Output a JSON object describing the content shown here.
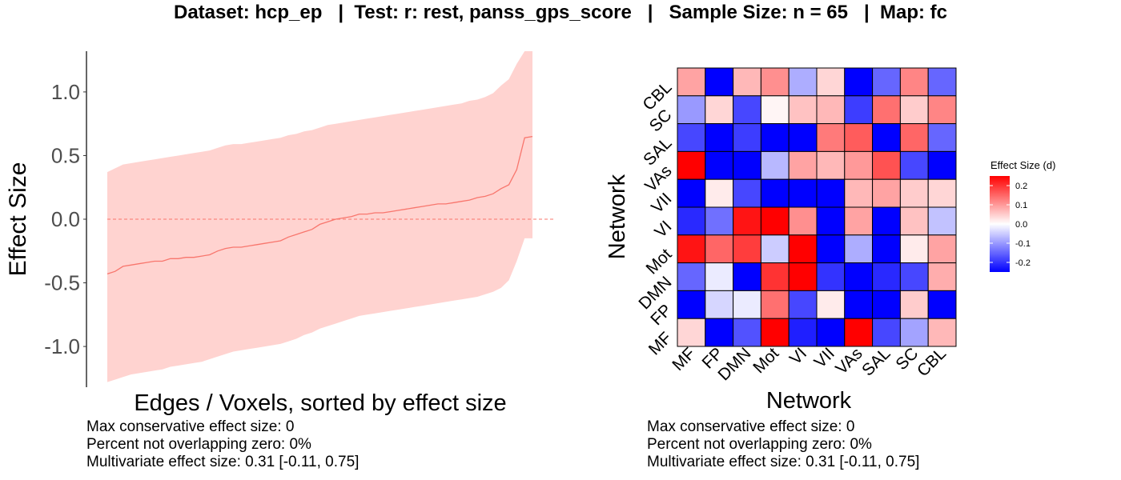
{
  "title": "Dataset: hcp_ep   |  Test: r: rest, panss_gps_score   |   Sample Size: n = 65   |  Map: fc",
  "chart_data": [
    {
      "type": "area",
      "xlabel": "Edges / Voxels, sorted by effect size",
      "ylabel": "Effect Size",
      "ylim": [
        -1.32,
        1.32
      ],
      "yticks": [
        1.0,
        0.5,
        0.0,
        -0.5,
        -1.0
      ],
      "ytick_labels": [
        "1.0",
        "0.5",
        "0.0",
        "-0.5",
        "-1.0"
      ],
      "zero_line": 0,
      "series_color": "#f8766d",
      "band_color": "#ffd3d0",
      "x": [
        1,
        2,
        3,
        4,
        5,
        6,
        7,
        8,
        9,
        10,
        11,
        12,
        13,
        14,
        15,
        16,
        17,
        18,
        19,
        20,
        21,
        22,
        23,
        24,
        25,
        26,
        27,
        28,
        29,
        30,
        31,
        32,
        33,
        34,
        35,
        36,
        37,
        38,
        39,
        40,
        41,
        42,
        43,
        44,
        45,
        46,
        47,
        48,
        49,
        50,
        51,
        52,
        53,
        54,
        55
      ],
      "y": [
        -0.43,
        -0.41,
        -0.37,
        -0.36,
        -0.35,
        -0.34,
        -0.33,
        -0.33,
        -0.31,
        -0.31,
        -0.3,
        -0.3,
        -0.29,
        -0.28,
        -0.25,
        -0.23,
        -0.22,
        -0.22,
        -0.21,
        -0.2,
        -0.19,
        -0.18,
        -0.17,
        -0.14,
        -0.12,
        -0.1,
        -0.08,
        -0.04,
        -0.02,
        0.0,
        0.01,
        0.02,
        0.04,
        0.04,
        0.05,
        0.05,
        0.06,
        0.07,
        0.08,
        0.09,
        0.1,
        0.11,
        0.12,
        0.12,
        0.13,
        0.14,
        0.15,
        0.17,
        0.18,
        0.2,
        0.24,
        0.27,
        0.39,
        0.64,
        0.65
      ],
      "ci_upper": [
        0.37,
        0.4,
        0.43,
        0.44,
        0.45,
        0.46,
        0.47,
        0.48,
        0.49,
        0.5,
        0.51,
        0.52,
        0.53,
        0.54,
        0.56,
        0.58,
        0.59,
        0.59,
        0.6,
        0.61,
        0.62,
        0.63,
        0.64,
        0.66,
        0.67,
        0.69,
        0.7,
        0.72,
        0.74,
        0.75,
        0.76,
        0.77,
        0.78,
        0.79,
        0.8,
        0.81,
        0.82,
        0.83,
        0.84,
        0.85,
        0.86,
        0.87,
        0.88,
        0.89,
        0.9,
        0.91,
        0.93,
        0.94,
        0.96,
        0.99,
        1.05,
        1.1,
        1.22,
        1.32,
        1.32
      ],
      "ci_lower": [
        -1.28,
        -1.26,
        -1.24,
        -1.22,
        -1.21,
        -1.2,
        -1.19,
        -1.18,
        -1.16,
        -1.15,
        -1.14,
        -1.13,
        -1.12,
        -1.1,
        -1.08,
        -1.06,
        -1.04,
        -1.03,
        -1.02,
        -1.01,
        -1.0,
        -0.99,
        -0.98,
        -0.96,
        -0.94,
        -0.91,
        -0.89,
        -0.86,
        -0.84,
        -0.82,
        -0.8,
        -0.78,
        -0.76,
        -0.75,
        -0.74,
        -0.73,
        -0.72,
        -0.71,
        -0.7,
        -0.69,
        -0.68,
        -0.67,
        -0.66,
        -0.65,
        -0.64,
        -0.63,
        -0.62,
        -0.61,
        -0.59,
        -0.57,
        -0.54,
        -0.48,
        -0.33,
        -0.15,
        -0.15
      ]
    },
    {
      "type": "heatmap",
      "xlabel": "Network",
      "ylabel": "Network",
      "x_categories": [
        "MF",
        "FP",
        "DMN",
        "Mot",
        "VI",
        "VII",
        "VAs",
        "SAL",
        "SC",
        "CBL"
      ],
      "y_categories": [
        "CBL",
        "SC",
        "SAL",
        "VAs",
        "VII",
        "VI",
        "Mot",
        "DMN",
        "FP",
        "MF"
      ],
      "values": [
        [
          0.09,
          -0.25,
          0.07,
          0.11,
          -0.08,
          0.04,
          -0.25,
          -0.15,
          0.12,
          -0.15
        ],
        [
          -0.1,
          0.04,
          -0.18,
          0.01,
          0.06,
          0.07,
          -0.19,
          0.14,
          0.05,
          0.12
        ],
        [
          -0.18,
          -0.25,
          -0.19,
          -0.25,
          -0.25,
          0.13,
          0.16,
          -0.25,
          0.15,
          -0.15
        ],
        [
          0.28,
          -0.25,
          -0.25,
          -0.07,
          0.09,
          0.07,
          0.1,
          0.17,
          -0.18,
          -0.25
        ],
        [
          -0.25,
          0.02,
          -0.18,
          -0.25,
          -0.25,
          -0.25,
          0.07,
          0.09,
          0.05,
          0.04
        ],
        [
          -0.21,
          -0.14,
          0.23,
          0.25,
          0.11,
          -0.25,
          0.09,
          -0.25,
          0.06,
          -0.06
        ],
        [
          0.23,
          0.15,
          0.19,
          -0.05,
          0.26,
          -0.25,
          -0.08,
          -0.25,
          0.02,
          0.09
        ],
        [
          -0.15,
          -0.02,
          -0.25,
          0.2,
          0.26,
          -0.2,
          -0.25,
          -0.21,
          -0.18,
          0.08
        ],
        [
          -0.25,
          -0.04,
          -0.02,
          0.14,
          -0.18,
          0.02,
          -0.25,
          -0.25,
          0.05,
          -0.25
        ],
        [
          0.04,
          -0.25,
          -0.17,
          0.28,
          -0.22,
          -0.25,
          0.28,
          -0.18,
          -0.09,
          0.07
        ]
      ],
      "colorscale": {
        "low": "#0000ff",
        "mid": "#ffffff",
        "high": "#ff0000",
        "limits": [
          -0.25,
          0.25
        ]
      }
    }
  ],
  "legend": {
    "title": "Effect Size (d)",
    "ticks": [
      0.2,
      0.1,
      0.0,
      -0.1,
      -0.2
    ],
    "tick_labels": [
      "0.2",
      "0.1",
      "0.0",
      "-0.1",
      "-0.2"
    ]
  },
  "notes_left": [
    "Max conservative effect size: 0",
    "Percent not overlapping zero: 0%",
    "Multivariate effect size: 0.31 [-0.11, 0.75]"
  ],
  "notes_right": [
    "Max conservative effect size: 0",
    "Percent not overlapping zero: 0%",
    "Multivariate effect size: 0.31 [-0.11, 0.75]"
  ]
}
